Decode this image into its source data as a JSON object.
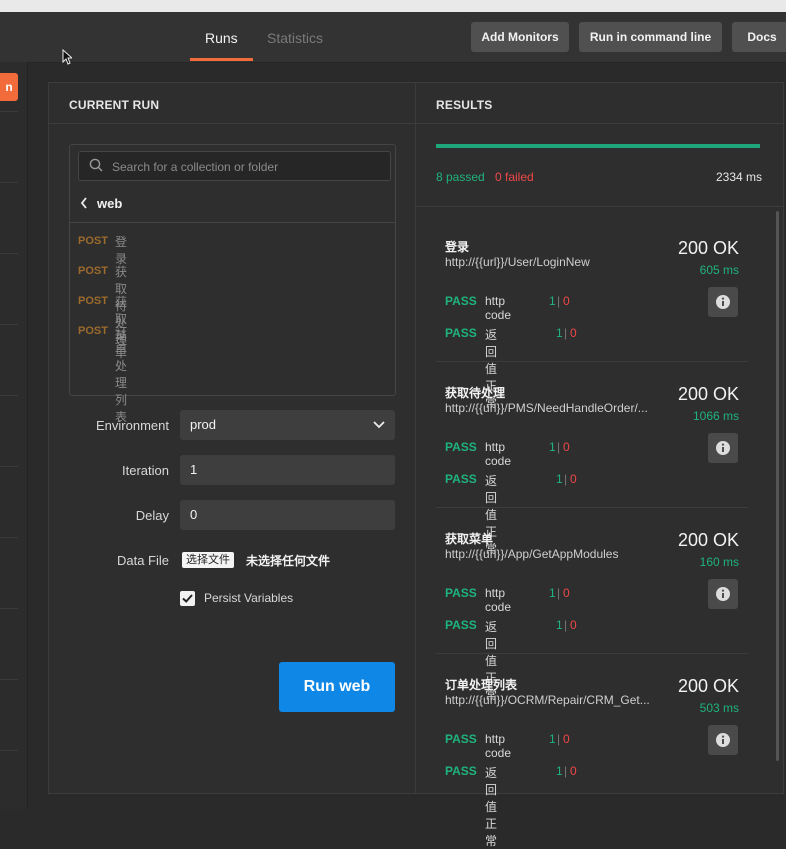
{
  "header": {
    "tabs": [
      {
        "label": "Runs",
        "active": true
      },
      {
        "label": "Statistics",
        "active": false
      }
    ],
    "buttons": {
      "add_monitors": "Add Monitors",
      "run_cmd": "Run in command line",
      "docs": "Docs"
    }
  },
  "left_strip": {
    "button_label": "n"
  },
  "current_run": {
    "title": "CURRENT RUN",
    "search_placeholder": "Search for a collection or folder",
    "folder": "web",
    "requests": [
      {
        "method": "POST",
        "name": "登录"
      },
      {
        "method": "POST",
        "name": "获取待处理"
      },
      {
        "method": "POST",
        "name": "获取菜单"
      },
      {
        "method": "POST",
        "name": "订单处理列表"
      }
    ],
    "environment": {
      "label": "Environment",
      "value": "prod"
    },
    "iteration": {
      "label": "Iteration",
      "value": "1"
    },
    "delay": {
      "label": "Delay",
      "value": "0"
    },
    "data_file": {
      "label": "Data File",
      "button": "选择文件",
      "status": "未选择任何文件"
    },
    "persist": {
      "label": "Persist Variables",
      "checked": true
    },
    "run_button": "Run web"
  },
  "results": {
    "title": "RESULTS",
    "progress_fraction": 1.0,
    "passed": "8 passed",
    "failed": "0 failed",
    "time": "2334 ms",
    "items": [
      {
        "name": "登录",
        "url": "http://{{url}}/User/LoginNew",
        "status": "200 OK",
        "time": "605 ms",
        "tests": [
          {
            "result": "PASS",
            "name": "http code",
            "pass": "1",
            "fail": "0"
          },
          {
            "result": "PASS",
            "name": "返回值正常",
            "pass": "1",
            "fail": "0"
          }
        ]
      },
      {
        "name": "获取待处理",
        "url": "http://{{url}}/PMS/NeedHandleOrder/...",
        "status": "200 OK",
        "time": "1066 ms",
        "tests": [
          {
            "result": "PASS",
            "name": "http code",
            "pass": "1",
            "fail": "0"
          },
          {
            "result": "PASS",
            "name": "返回值正常",
            "pass": "1",
            "fail": "0"
          }
        ]
      },
      {
        "name": "获取菜单",
        "url": "http://{{url}}/App/GetAppModules",
        "status": "200 OK",
        "time": "160 ms",
        "tests": [
          {
            "result": "PASS",
            "name": "http code",
            "pass": "1",
            "fail": "0"
          },
          {
            "result": "PASS",
            "name": "返回值正常",
            "pass": "1",
            "fail": "0"
          }
        ]
      },
      {
        "name": "订单处理列表",
        "url": "http://{{url}}/OCRM/Repair/CRM_Get...",
        "status": "200 OK",
        "time": "503 ms",
        "tests": [
          {
            "result": "PASS",
            "name": "http code",
            "pass": "1",
            "fail": "0"
          },
          {
            "result": "PASS",
            "name": "返回值正常",
            "pass": "1",
            "fail": "0"
          }
        ]
      }
    ]
  },
  "colors": {
    "accent_orange": "#f26b3a",
    "pass_green": "#1fb37d",
    "fail_red": "#f04848",
    "run_blue": "#0f87e6",
    "post_method": "#9c6a2c"
  }
}
